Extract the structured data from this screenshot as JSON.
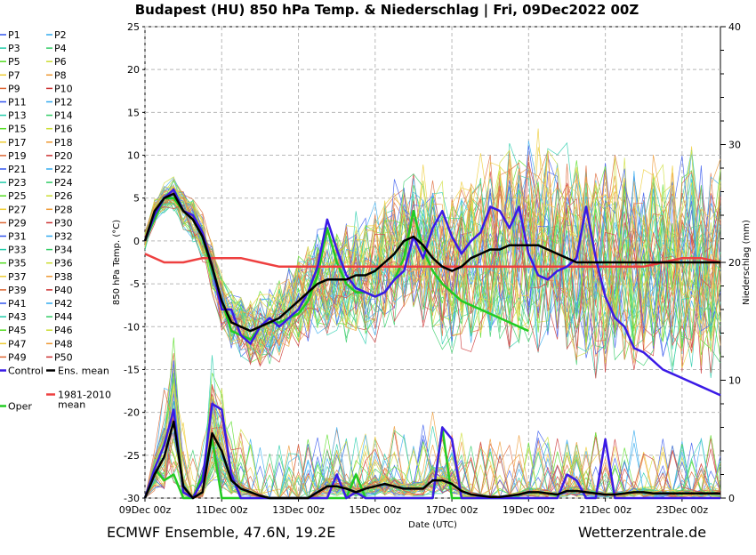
{
  "title": "Budapest  (HU)  850 hPa Temp. & Niederschlag | Fri, 09Dec2022 00Z",
  "footer_left": "ECMWF Ensemble, 47.6N, 19.2E",
  "footer_right": "Wetterzentrale.de",
  "chart_data": {
    "type": "line",
    "title": "Budapest  (HU)  850 hPa Temp. & Niederschlag | Fri, 09Dec2022 00Z",
    "xlabel": "Date (UTC)",
    "ylabel_left": "850 hPa Temp. (°C)",
    "ylabel_right": "Niederschlag (mm)",
    "xlim": [
      0,
      360
    ],
    "ylim_left": [
      -30,
      25
    ],
    "ylim_right": [
      0,
      40
    ],
    "grid": true,
    "legend_position": "left",
    "x_tick_labels": [
      "09Dec 00z",
      "11Dec 00z",
      "13Dec 00z",
      "15Dec 00z",
      "17Dec 00z",
      "19Dec 00z",
      "21Dec 00z",
      "23Dec 00z"
    ],
    "x_tick_hours": [
      0,
      48,
      96,
      144,
      192,
      240,
      288,
      336
    ],
    "y_left_ticks": [
      "25",
      "20",
      "15",
      "10",
      "5",
      "0",
      "-5",
      "-10",
      "-15",
      "-20",
      "-25",
      "-30"
    ],
    "y_right_ticks": [
      "40",
      "30",
      "20",
      "10",
      "0"
    ],
    "legend": [
      [
        "P1",
        "P2"
      ],
      [
        "P3",
        "P4"
      ],
      [
        "P5",
        "P6"
      ],
      [
        "P7",
        "P8"
      ],
      [
        "P9",
        "P10"
      ],
      [
        "P11",
        "P12"
      ],
      [
        "P13",
        "P14"
      ],
      [
        "P15",
        "P16"
      ],
      [
        "P17",
        "P18"
      ],
      [
        "P19",
        "P20"
      ],
      [
        "P21",
        "P22"
      ],
      [
        "P23",
        "P24"
      ],
      [
        "P25",
        "P26"
      ],
      [
        "P27",
        "P28"
      ],
      [
        "P29",
        "P30"
      ],
      [
        "P31",
        "P32"
      ],
      [
        "P33",
        "P34"
      ],
      [
        "P35",
        "P36"
      ],
      [
        "P37",
        "P38"
      ],
      [
        "P39",
        "P40"
      ],
      [
        "P41",
        "P42"
      ],
      [
        "P43",
        "P44"
      ],
      [
        "P45",
        "P46"
      ],
      [
        "P47",
        "P48"
      ],
      [
        "P49",
        "P50"
      ]
    ],
    "legend_special": {
      "control": "Control",
      "ens_mean": "Ens. mean",
      "clim": "1981-2010 mean",
      "oper": "Oper"
    },
    "colors": {
      "control": "#3a1ae6",
      "ens_mean": "#000000",
      "clim": "#ee4040",
      "oper": "#22cc22",
      "members": [
        "#3355ee",
        "#33aaee",
        "#22ccaa",
        "#33cc66",
        "#55dd22",
        "#ccdd33",
        "#eecc33",
        "#ee9933",
        "#dd6633",
        "#cc3333"
      ]
    },
    "series": [
      {
        "name": "Control",
        "x": [
          0,
          6,
          12,
          18,
          24,
          30,
          36,
          42,
          48,
          54,
          60,
          66,
          72,
          78,
          84,
          90,
          96,
          102,
          108,
          114,
          120,
          126,
          132,
          138,
          144,
          150,
          156,
          162,
          168,
          174,
          180,
          186,
          192,
          198,
          204,
          210,
          216,
          222,
          228,
          234,
          240,
          246,
          252,
          258,
          264,
          270,
          276,
          282,
          288,
          294,
          300,
          306,
          312,
          318,
          324,
          330,
          336,
          342,
          348,
          354,
          360
        ],
        "y": [
          0,
          3,
          5,
          6,
          3.5,
          3,
          1,
          -3,
          -8,
          -8,
          -11,
          -12,
          -10,
          -9,
          -10,
          -9,
          -8,
          -6,
          -3,
          2.5,
          -1,
          -4,
          -5.5,
          -6,
          -6.5,
          -6,
          -4.5,
          -3.5,
          0.5,
          -2,
          1.5,
          3.5,
          0.5,
          -1.5,
          0,
          1,
          4,
          3.5,
          1.5,
          4,
          -1.5,
          -4,
          -4.5,
          -3.5,
          -3,
          -2,
          4,
          -2,
          -6.5,
          -9,
          -10,
          -12.5,
          -13,
          -14,
          -15,
          -15.5,
          -16,
          -16.5,
          -17,
          -17.5,
          -18
        ]
      },
      {
        "name": "Ens. mean",
        "x": [
          0,
          6,
          12,
          18,
          24,
          30,
          36,
          42,
          48,
          54,
          60,
          66,
          72,
          78,
          84,
          90,
          96,
          102,
          108,
          114,
          120,
          126,
          132,
          138,
          144,
          150,
          156,
          162,
          168,
          174,
          180,
          186,
          192,
          198,
          204,
          210,
          216,
          222,
          228,
          234,
          240,
          246,
          252,
          258,
          264,
          270,
          276,
          282,
          288,
          294,
          300,
          306,
          312,
          318,
          324,
          330,
          336,
          342,
          348,
          354,
          360
        ],
        "y": [
          0,
          3.5,
          5,
          5.5,
          3.5,
          2.5,
          0.5,
          -3,
          -7,
          -9.5,
          -10,
          -10.5,
          -10,
          -9.5,
          -9,
          -8,
          -7,
          -6,
          -5,
          -4.5,
          -4.5,
          -4.5,
          -4,
          -4,
          -3.5,
          -2.5,
          -1.5,
          0,
          0.5,
          -0.5,
          -2,
          -3,
          -3.5,
          -3,
          -2,
          -1.5,
          -1,
          -1,
          -0.5,
          -0.5,
          -0.5,
          -0.5,
          -1,
          -1.5,
          -2,
          -2.5,
          -2.5,
          -2.5,
          -2.5,
          -2.5,
          -2.5,
          -2.5,
          -2.5,
          -2.5,
          -2.5,
          -2.5,
          -2.5,
          -2.5,
          -2.5,
          -2.5,
          -2.5
        ]
      },
      {
        "name": "1981-2010 mean",
        "x": [
          0,
          12,
          24,
          36,
          48,
          60,
          72,
          84,
          96,
          108,
          120,
          132,
          144,
          156,
          168,
          180,
          192,
          204,
          216,
          228,
          240,
          252,
          264,
          276,
          288,
          300,
          312,
          324,
          336,
          348,
          360
        ],
        "y": [
          -1.5,
          -2.5,
          -2.5,
          -2,
          -2,
          -2,
          -2.5,
          -3,
          -3,
          -3,
          -3,
          -3,
          -3,
          -3,
          -3,
          -3,
          -3,
          -3,
          -3,
          -3,
          -3,
          -3,
          -3,
          -3,
          -3,
          -3,
          -3,
          -2.5,
          -2,
          -2,
          -2.5
        ]
      },
      {
        "name": "Oper",
        "x": [
          0,
          6,
          12,
          18,
          24,
          30,
          36,
          42,
          48,
          54,
          60,
          66,
          72,
          78,
          84,
          90,
          96,
          102,
          108,
          114,
          120,
          126,
          132,
          138,
          144,
          150,
          156,
          162,
          168,
          174,
          180,
          186,
          192,
          198,
          204,
          210,
          216,
          222,
          228,
          234,
          240
        ],
        "y": [
          0,
          2.5,
          5,
          5,
          3.5,
          2.5,
          0.5,
          -3.5,
          -7,
          -10.5,
          -11,
          -11.5,
          -10,
          -9.5,
          -9.5,
          -9,
          -8.5,
          -7,
          -4,
          1.5,
          -2.5,
          -5,
          -6,
          -6,
          -6.5,
          -6,
          -4.5,
          -2,
          3.5,
          -1,
          -3.5,
          -5,
          -6,
          -7,
          -7.5,
          -8,
          -8.5,
          -9,
          -9.5,
          -10,
          -10.5
        ]
      }
    ],
    "precip_series": [
      {
        "name": "Control",
        "x": [
          0,
          6,
          12,
          18,
          24,
          30,
          36,
          42,
          48,
          54,
          60,
          66,
          72,
          78,
          84,
          90,
          96,
          102,
          108,
          114,
          120,
          126,
          132,
          138,
          144,
          150,
          156,
          162,
          168,
          174,
          180,
          186,
          192,
          198,
          204,
          210,
          216,
          222,
          228,
          234,
          240,
          246,
          252,
          258,
          264,
          270,
          276,
          282,
          288,
          294,
          300,
          306,
          312,
          318,
          324,
          330,
          336,
          342,
          348,
          354,
          360
        ],
        "y": [
          0,
          2.5,
          4.5,
          7.5,
          0.5,
          0,
          1.5,
          8,
          7.5,
          2,
          0,
          0,
          0,
          0,
          0,
          0,
          0,
          0,
          0,
          0,
          2,
          0,
          0.5,
          0,
          0,
          0,
          0,
          0,
          0,
          0,
          0,
          6,
          5,
          0,
          0,
          0,
          0,
          0,
          0,
          0,
          0,
          0,
          0,
          0,
          2,
          1.5,
          0,
          0,
          5,
          0,
          0,
          0,
          0,
          0,
          0,
          0,
          0,
          0,
          0,
          0,
          0
        ]
      },
      {
        "name": "Ens. mean",
        "x": [
          0,
          6,
          12,
          18,
          24,
          30,
          36,
          42,
          48,
          54,
          60,
          66,
          72,
          78,
          84,
          90,
          96,
          102,
          108,
          114,
          120,
          126,
          132,
          138,
          144,
          150,
          156,
          162,
          168,
          174,
          180,
          186,
          192,
          198,
          204,
          210,
          216,
          222,
          228,
          234,
          240,
          246,
          252,
          258,
          264,
          270,
          276,
          282,
          288,
          294,
          300,
          306,
          312,
          318,
          324,
          330,
          336,
          342,
          348,
          354,
          360
        ],
        "y": [
          0,
          2,
          3.5,
          6.5,
          1,
          0,
          0.5,
          5.5,
          4,
          1.5,
          0.8,
          0.5,
          0.2,
          0,
          0,
          0,
          0,
          0,
          0.5,
          1,
          1,
          0.8,
          0.5,
          0.8,
          1,
          1.2,
          1,
          0.8,
          0.8,
          0.8,
          1.5,
          1.5,
          1.2,
          0.6,
          0.3,
          0.2,
          0.1,
          0.1,
          0.2,
          0.3,
          0.5,
          0.5,
          0.4,
          0.3,
          0.6,
          0.6,
          0.5,
          0.4,
          0.3,
          0.3,
          0.4,
          0.5,
          0.5,
          0.4,
          0.4,
          0.4,
          0.4,
          0.4,
          0.4,
          0.4,
          0.4
        ]
      },
      {
        "name": "Oper",
        "x": [
          0,
          6,
          12,
          18,
          24,
          30,
          36,
          42,
          48,
          54,
          60,
          66,
          72,
          78,
          84,
          90,
          96,
          102,
          108,
          114,
          120,
          126,
          132,
          138,
          144,
          150,
          156,
          162,
          168,
          174,
          180,
          186,
          192,
          198,
          204,
          210,
          216,
          222,
          228,
          234,
          240
        ],
        "y": [
          0,
          2.5,
          1.5,
          2,
          0,
          0,
          2,
          5,
          0,
          0,
          0,
          0,
          0,
          0,
          0,
          0,
          0,
          0,
          0,
          0,
          0,
          0,
          2,
          0,
          0,
          0,
          0,
          0,
          0,
          0,
          0,
          6,
          0,
          0,
          0,
          0,
          0,
          0,
          0,
          0,
          0
        ]
      }
    ]
  }
}
